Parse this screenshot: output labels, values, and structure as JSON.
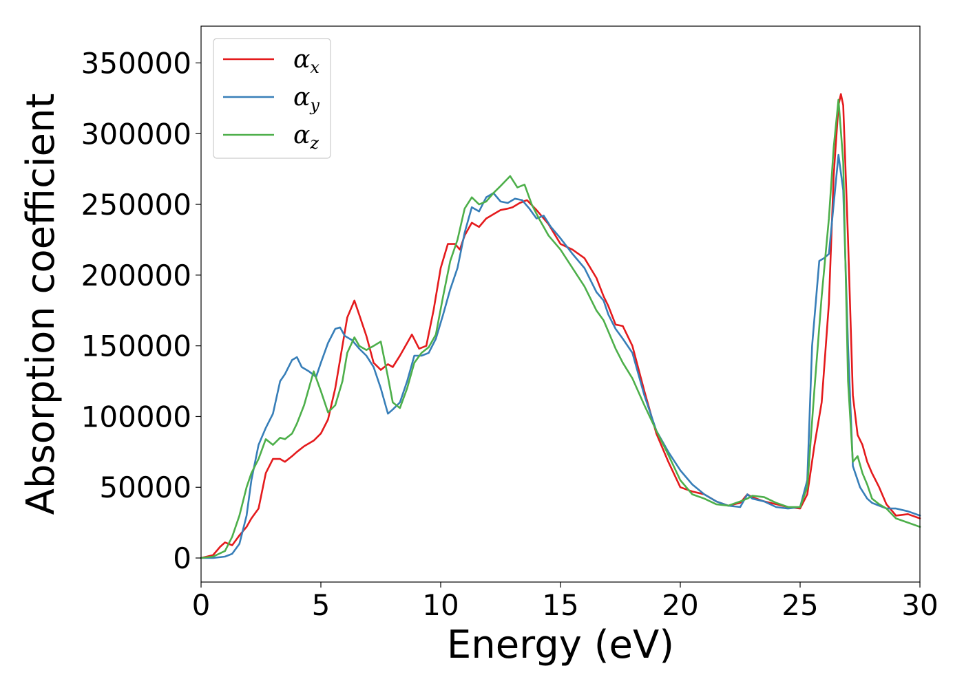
{
  "chart_data": {
    "type": "line",
    "title": "",
    "xlabel": "Energy (eV)",
    "ylabel": "Absorption coefficient",
    "xlim": [
      0,
      30
    ],
    "ylim": [
      -17000,
      376000
    ],
    "xticks": [
      0,
      5,
      10,
      15,
      20,
      25,
      30
    ],
    "xtick_labels": [
      "0",
      "5",
      "10",
      "15",
      "20",
      "25",
      "30"
    ],
    "yticks": [
      0,
      50000,
      100000,
      150000,
      200000,
      250000,
      300000,
      350000
    ],
    "ytick_labels": [
      "0",
      "50000",
      "100000",
      "150000",
      "200000",
      "250000",
      "300000",
      "350000"
    ],
    "grid": false,
    "legend_position": "top-left",
    "series": [
      {
        "name": "α_x",
        "label_base": "α",
        "label_sub": "x",
        "color": "#e41a1c",
        "x": [
          0,
          0.5,
          0.8,
          1.0,
          1.3,
          1.6,
          1.9,
          2.1,
          2.4,
          2.7,
          3.0,
          3.3,
          3.5,
          3.8,
          4.0,
          4.3,
          4.7,
          5.0,
          5.3,
          5.6,
          5.9,
          6.1,
          6.4,
          6.6,
          6.9,
          7.2,
          7.5,
          7.8,
          8.0,
          8.3,
          8.6,
          8.8,
          9.1,
          9.4,
          9.7,
          10.0,
          10.3,
          10.6,
          10.8,
          11.0,
          11.3,
          11.6,
          11.9,
          12.2,
          12.5,
          12.8,
          13.0,
          13.3,
          13.6,
          14.0,
          14.5,
          15.0,
          15.5,
          16.0,
          16.5,
          16.8,
          17.0,
          17.3,
          17.6,
          18.0,
          18.5,
          19.0,
          19.5,
          20.0,
          20.5,
          21.0,
          21.5,
          22.0,
          22.5,
          22.8,
          23.0,
          23.5,
          24.0,
          24.5,
          25.0,
          25.3,
          25.6,
          25.9,
          26.2,
          26.4,
          26.6,
          26.7,
          26.8,
          27.0,
          27.2,
          27.4,
          27.6,
          27.8,
          28.0,
          28.3,
          28.6,
          29.0,
          29.5,
          30.0
        ],
        "y": [
          0,
          2000,
          8000,
          11000,
          9000,
          16000,
          22000,
          28000,
          35000,
          60000,
          70000,
          70000,
          68000,
          72000,
          75000,
          79000,
          83000,
          88000,
          98000,
          120000,
          150000,
          170000,
          182000,
          172000,
          157000,
          138000,
          133000,
          137000,
          135000,
          143000,
          152000,
          158000,
          148000,
          150000,
          175000,
          205000,
          222000,
          222000,
          218000,
          228000,
          237000,
          234000,
          240000,
          243000,
          246000,
          247000,
          248000,
          251000,
          253000,
          246000,
          236000,
          222000,
          218000,
          212000,
          198000,
          185000,
          178000,
          165000,
          164000,
          150000,
          118000,
          88000,
          68000,
          50000,
          47000,
          45000,
          40000,
          37000,
          39000,
          45000,
          43000,
          40000,
          38000,
          36000,
          35000,
          45000,
          80000,
          110000,
          180000,
          270000,
          320000,
          328000,
          320000,
          225000,
          115000,
          87000,
          80000,
          68000,
          60000,
          50000,
          38000,
          30000,
          31000,
          28000
        ]
      },
      {
        "name": "α_y",
        "label_base": "α",
        "label_sub": "y",
        "color": "#377eb8",
        "x": [
          0,
          0.5,
          1.0,
          1.3,
          1.6,
          1.9,
          2.1,
          2.4,
          2.7,
          3.0,
          3.3,
          3.5,
          3.8,
          4.0,
          4.2,
          4.5,
          4.8,
          5.0,
          5.3,
          5.6,
          5.8,
          6.0,
          6.3,
          6.6,
          6.9,
          7.2,
          7.5,
          7.8,
          8.0,
          8.3,
          8.6,
          8.9,
          9.2,
          9.5,
          9.8,
          10.1,
          10.4,
          10.7,
          11.0,
          11.3,
          11.6,
          11.9,
          12.2,
          12.5,
          12.8,
          13.1,
          13.4,
          13.7,
          14.0,
          14.3,
          14.6,
          15.0,
          15.5,
          16.0,
          16.5,
          16.8,
          17.0,
          17.3,
          17.6,
          18.0,
          18.5,
          19.0,
          19.5,
          20.0,
          20.5,
          21.0,
          21.5,
          22.0,
          22.5,
          22.8,
          23.0,
          23.5,
          24.0,
          24.5,
          25.0,
          25.3,
          25.5,
          25.8,
          26.0,
          26.2,
          26.4,
          26.6,
          26.8,
          27.0,
          27.2,
          27.5,
          27.8,
          28.0,
          28.3,
          28.6,
          29.0,
          29.5,
          30.0
        ],
        "y": [
          0,
          0,
          1000,
          3000,
          10000,
          30000,
          55000,
          80000,
          92000,
          102000,
          125000,
          130000,
          140000,
          142000,
          135000,
          132000,
          128000,
          138000,
          152000,
          162000,
          163000,
          157000,
          154000,
          148000,
          143000,
          135000,
          120000,
          102000,
          105000,
          110000,
          125000,
          143000,
          143000,
          145000,
          155000,
          172000,
          190000,
          205000,
          230000,
          248000,
          245000,
          255000,
          258000,
          252000,
          251000,
          254000,
          253000,
          247000,
          240000,
          242000,
          234000,
          226000,
          215000,
          205000,
          188000,
          182000,
          172000,
          162000,
          155000,
          145000,
          115000,
          90000,
          75000,
          62000,
          52000,
          45000,
          40000,
          37000,
          36000,
          45000,
          42000,
          40000,
          36000,
          35000,
          36000,
          55000,
          150000,
          210000,
          212000,
          215000,
          250000,
          285000,
          260000,
          150000,
          65000,
          50000,
          42000,
          39000,
          37000,
          35000,
          35000,
          33000,
          30000
        ]
      },
      {
        "name": "α_z",
        "label_base": "α",
        "label_sub": "z",
        "color": "#4daf4a",
        "x": [
          0,
          0.5,
          1.0,
          1.3,
          1.6,
          1.9,
          2.1,
          2.4,
          2.7,
          3.0,
          3.3,
          3.5,
          3.8,
          4.0,
          4.3,
          4.7,
          5.0,
          5.3,
          5.6,
          5.9,
          6.1,
          6.4,
          6.6,
          6.9,
          7.2,
          7.5,
          7.8,
          8.0,
          8.3,
          8.6,
          8.9,
          9.2,
          9.5,
          9.8,
          10.1,
          10.4,
          10.7,
          11.0,
          11.3,
          11.6,
          11.9,
          12.2,
          12.5,
          12.9,
          13.2,
          13.5,
          13.8,
          14.1,
          14.5,
          15.0,
          15.5,
          16.0,
          16.5,
          16.8,
          17.0,
          17.3,
          17.6,
          18.0,
          18.5,
          19.0,
          19.5,
          20.0,
          20.5,
          21.0,
          21.5,
          22.0,
          22.5,
          22.8,
          23.0,
          23.5,
          24.0,
          24.5,
          25.0,
          25.3,
          25.6,
          25.9,
          26.2,
          26.4,
          26.6,
          26.8,
          27.0,
          27.2,
          27.4,
          27.6,
          27.8,
          28.0,
          28.3,
          28.6,
          29.0,
          29.5,
          30.0
        ],
        "y": [
          0,
          1000,
          5000,
          15000,
          30000,
          50000,
          60000,
          70000,
          84000,
          80000,
          85000,
          84000,
          88000,
          95000,
          108000,
          132000,
          118000,
          103000,
          108000,
          125000,
          145000,
          156000,
          150000,
          147000,
          150000,
          153000,
          128000,
          110000,
          106000,
          120000,
          138000,
          145000,
          149000,
          158000,
          185000,
          210000,
          225000,
          247000,
          255000,
          250000,
          252000,
          258000,
          263000,
          270000,
          262000,
          264000,
          250000,
          240000,
          228000,
          218000,
          205000,
          192000,
          175000,
          168000,
          160000,
          148000,
          138000,
          127000,
          108000,
          90000,
          73000,
          55000,
          45000,
          42000,
          38000,
          37000,
          40000,
          42000,
          44000,
          43000,
          39000,
          36000,
          36000,
          50000,
          120000,
          185000,
          240000,
          290000,
          324000,
          280000,
          125000,
          68000,
          72000,
          60000,
          52000,
          42000,
          38000,
          35000,
          28000,
          25000,
          22000
        ]
      }
    ]
  }
}
